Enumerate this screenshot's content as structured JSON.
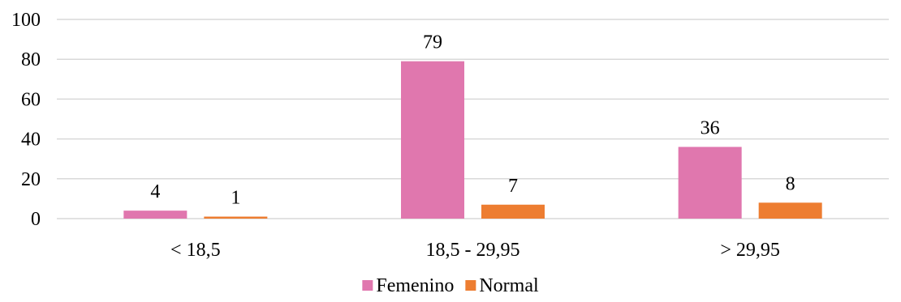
{
  "chart_data": {
    "type": "bar",
    "categories": [
      "< 18,5",
      "18,5 - 29,95",
      "> 29,95"
    ],
    "series": [
      {
        "name": "Femenino",
        "values": [
          4,
          79,
          36
        ],
        "color": "#e077ae"
      },
      {
        "name": "Normal",
        "values": [
          1,
          7,
          8
        ],
        "color": "#ed7d31"
      }
    ],
    "ylim": [
      0,
      100
    ],
    "yticks": [
      0,
      20,
      40,
      60,
      80,
      100
    ],
    "grid": true,
    "legend_position": "bottom",
    "title": "",
    "xlabel": "",
    "ylabel": ""
  }
}
